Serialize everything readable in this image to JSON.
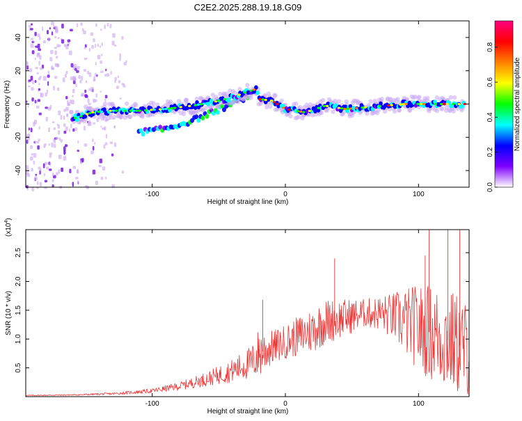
{
  "title": "C2E2.2025.288.19.18.G09",
  "chart_data": [
    {
      "type": "heatmap",
      "xlabel": "Height of straight line (km)",
      "ylabel": "Frequency (Hz)",
      "xlim": [
        -195,
        138
      ],
      "ylim": [
        -50,
        50
      ],
      "xticks": [
        -100,
        0,
        100
      ],
      "yticks": [
        -40,
        -20,
        0,
        20,
        40
      ],
      "colorbar": {
        "label": "Normalized spectral amplitude",
        "range": [
          0.0,
          0.95
        ],
        "ticks": [
          0.0,
          0.2,
          0.4,
          0.6,
          0.8
        ],
        "tick_labels": [
          "0.0",
          "0.2",
          "0.4",
          "0.6",
          "0.8"
        ],
        "colors": [
          "#ffffff",
          "#7f00ff",
          "#0000ff",
          "#00ffff",
          "#00ff00",
          "#ffff00",
          "#ff8000",
          "#ff0000",
          "#ff0080"
        ]
      },
      "ridge": [
        {
          "x": -160,
          "y": -9
        },
        {
          "x": -145,
          "y": -5
        },
        {
          "x": -130,
          "y": -4
        },
        {
          "x": -110,
          "y": -4
        },
        {
          "x": -90,
          "y": -3
        },
        {
          "x": -70,
          "y": -1
        },
        {
          "x": -55,
          "y": 1
        },
        {
          "x": -40,
          "y": 4
        },
        {
          "x": -30,
          "y": 7
        },
        {
          "x": -22,
          "y": 9
        },
        {
          "x": -20,
          "y": 3
        },
        {
          "x": -10,
          "y": 2
        },
        {
          "x": 0,
          "y": -3
        },
        {
          "x": 15,
          "y": -5
        },
        {
          "x": 30,
          "y": -1
        },
        {
          "x": 45,
          "y": -3
        },
        {
          "x": 60,
          "y": -2
        },
        {
          "x": 75,
          "y": -1
        },
        {
          "x": 90,
          "y": 0
        },
        {
          "x": 105,
          "y": 0
        },
        {
          "x": 120,
          "y": 0
        },
        {
          "x": 135,
          "y": 0
        }
      ],
      "secondary_branch": [
        {
          "x": -110,
          "y": -17
        },
        {
          "x": -90,
          "y": -15
        },
        {
          "x": -70,
          "y": -10
        },
        {
          "x": -55,
          "y": -5
        },
        {
          "x": -40,
          "y": 0
        },
        {
          "x": -28,
          "y": 5
        }
      ],
      "noise_region_x": [
        -195,
        -120
      ]
    },
    {
      "type": "line",
      "xlabel": "Height of straight line (km)",
      "ylabel": "SNR (10 * v/v)",
      "exponent_label": "(x10",
      "exponent_power": "4",
      "exponent_close": ")",
      "xlim": [
        -195,
        138
      ],
      "ylim": [
        0,
        2.9
      ],
      "xticks": [
        -100,
        0,
        100
      ],
      "yticks": [
        0.5,
        1.0,
        1.5,
        2.0,
        2.5
      ],
      "ytick_labels": [
        "0.5",
        "1.0",
        "1.5",
        "2.0",
        "2.5"
      ],
      "series_color": "#ee3333",
      "envelope": {
        "x": [
          -195,
          -160,
          -130,
          -100,
          -80,
          -60,
          -40,
          -25,
          -20,
          -10,
          0,
          10,
          20,
          30,
          40,
          50,
          60,
          70,
          80,
          90,
          100,
          110,
          120,
          130,
          138
        ],
        "mean": [
          0.02,
          0.03,
          0.05,
          0.1,
          0.18,
          0.3,
          0.45,
          0.6,
          0.75,
          0.85,
          0.95,
          1.05,
          1.15,
          1.3,
          1.35,
          1.4,
          1.45,
          1.45,
          1.4,
          1.3,
          1.2,
          1.1,
          1.0,
          0.9,
          0.8
        ],
        "amp": [
          0.01,
          0.01,
          0.02,
          0.04,
          0.07,
          0.12,
          0.2,
          0.3,
          0.45,
          0.3,
          0.3,
          0.35,
          0.4,
          0.4,
          0.35,
          0.3,
          0.25,
          0.3,
          0.4,
          0.6,
          0.75,
          0.85,
          0.9,
          0.9,
          0.8
        ]
      },
      "peaks": [
        {
          "x": -17,
          "y": 1.68
        },
        {
          "x": 37,
          "y": 2.4
        },
        {
          "x": 105,
          "y": 2.45
        },
        {
          "x": 108,
          "y": 2.92
        },
        {
          "x": 122,
          "y": 2.92
        },
        {
          "x": 131,
          "y": 2.92
        }
      ]
    }
  ]
}
